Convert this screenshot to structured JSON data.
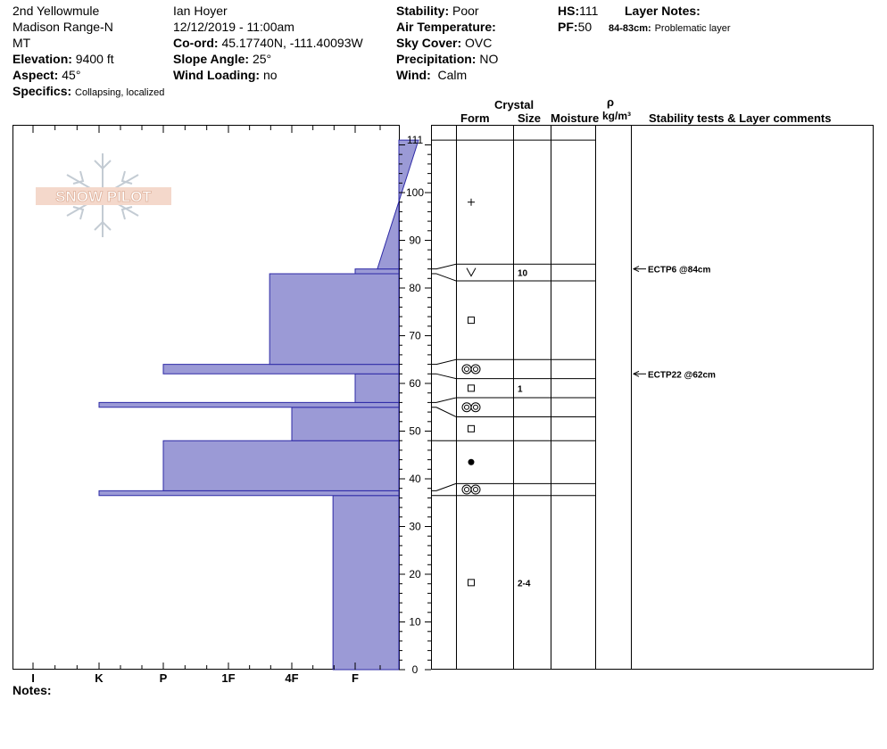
{
  "site": {
    "name": "2nd Yellowmule",
    "range": "Madison Range-N",
    "state": "MT"
  },
  "observer": {
    "name": "Ian Hoyer",
    "datetime": "12/12/2019 - 11:00am"
  },
  "fields": {
    "elevation_label": "Elevation:",
    "elevation": "9400 ft",
    "aspect_label": "Aspect:",
    "aspect": "45°",
    "specifics_label": "Specifics:",
    "specifics": "Collapsing, localized",
    "coord_label": "Co-ord:",
    "coord": "45.17740N, -111.40093W",
    "slope_label": "Slope Angle:",
    "slope": "25°",
    "wind_loading_label": "Wind Loading:",
    "wind_loading": "no",
    "stability_label": "Stability:",
    "stability": "Poor",
    "air_temp_label": "Air Temperature:",
    "sky_label": "Sky Cover:",
    "sky": "OVC",
    "precip_label": "Precipitation:",
    "precip": "NO",
    "wind_label": "Wind:",
    "wind": "Calm",
    "hs_label": "HS:",
    "hs": "111",
    "pf_label": "PF:",
    "pf": "50",
    "layer_notes_label": "Layer Notes:",
    "layer_note_depth": "84-83cm:",
    "layer_note_text": "Problematic layer"
  },
  "logo": {
    "text": "SNOW PILOT"
  },
  "columns": {
    "crystal": "Crystal",
    "form": "Form",
    "size": "Size",
    "moisture": "Moisture",
    "rho": "ρ",
    "density_unit": "kg/m³",
    "stability": "Stability tests & Layer comments"
  },
  "hardness_labels": [
    "I",
    "K",
    "P",
    "1F",
    "4F",
    "F"
  ],
  "depth_ticks": [
    "0",
    "10",
    "20",
    "30",
    "40",
    "50",
    "60",
    "70",
    "80",
    "90",
    "100",
    "111"
  ],
  "notes_label": "Notes:",
  "stability_tests": [
    {
      "text": "ECTP6 @84cm",
      "depth": 84
    },
    {
      "text": "ECTP22 @62cm",
      "depth": 62
    }
  ],
  "chart_data": {
    "type": "area",
    "x_axis": "hand hardness",
    "x_categories": [
      "I",
      "K",
      "P",
      "1F",
      "4F",
      "F"
    ],
    "y_axis": "height above ground (cm)",
    "ylim": [
      0,
      111
    ],
    "layers": [
      {
        "bottom": 0,
        "top": 36.5,
        "hardness_left": 4.65
      },
      {
        "bottom": 36.5,
        "top": 37.5,
        "hardness_left": 1.0
      },
      {
        "bottom": 37.5,
        "top": 48,
        "hardness_left": 2.0
      },
      {
        "bottom": 48,
        "top": 55,
        "hardness_left": 4.0
      },
      {
        "bottom": 55,
        "top": 56,
        "hardness_left": 1.0
      },
      {
        "bottom": 56,
        "top": 62,
        "hardness_left": 5.0
      },
      {
        "bottom": 62,
        "top": 64,
        "hardness_left": 2.0
      },
      {
        "bottom": 64,
        "top": 83,
        "hardness_left": 3.65
      },
      {
        "bottom": 83,
        "top": 84,
        "hardness_left": 5.0
      },
      {
        "bottom": 84,
        "top": 111,
        "hardness_left_bottom": 5.35,
        "hardness_left_top": 6.0
      }
    ],
    "grain_layers": [
      {
        "form": "ds",
        "size": "2-4",
        "bottom": 0,
        "top": 36.5
      },
      {
        "form": "sh",
        "size": "",
        "bottom": 36.5,
        "top": 39
      },
      {
        "form": "mf",
        "size": "",
        "bottom": 39,
        "top": 48
      },
      {
        "form": "ds",
        "size": "",
        "bottom": 48,
        "top": 53
      },
      {
        "form": "sh",
        "size": "",
        "bottom": 53,
        "top": 57
      },
      {
        "form": "ds",
        "size": "1",
        "bottom": 57,
        "top": 61
      },
      {
        "form": "sh",
        "size": "",
        "bottom": 61,
        "top": 65
      },
      {
        "form": "ds",
        "size": "",
        "bottom": 65,
        "top": 81.5
      },
      {
        "form": "sh-surface",
        "size": "10",
        "bottom": 81.5,
        "top": 85
      },
      {
        "form": "pp",
        "size": "",
        "bottom": 85,
        "top": 111
      }
    ]
  }
}
